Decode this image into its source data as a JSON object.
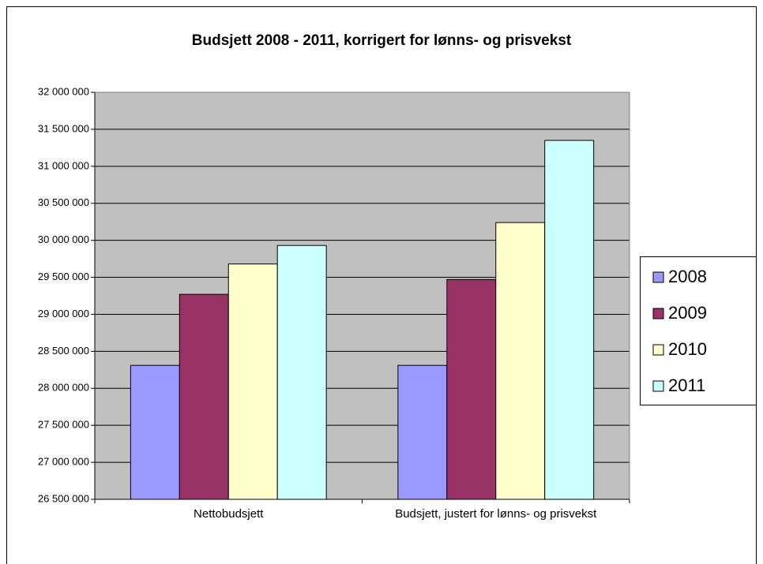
{
  "chart_data": {
    "type": "bar",
    "title": "Budsjett 2008 - 2011, korrigert for lønns- og prisvekst",
    "categories": [
      "Nettobudsjett",
      "Budsjett, justert for lønns- og prisvekst"
    ],
    "series": [
      {
        "name": "2008",
        "color": "#9999ff",
        "values": [
          28310000,
          28310000
        ]
      },
      {
        "name": "2009",
        "color": "#993366",
        "values": [
          29270000,
          29470000
        ]
      },
      {
        "name": "2010",
        "color": "#ffffcc",
        "values": [
          29680000,
          30240000
        ]
      },
      {
        "name": "2011",
        "color": "#ccffff",
        "values": [
          29930000,
          31350000
        ]
      }
    ],
    "ylim": [
      26500000,
      32000000
    ],
    "yticks": [
      {
        "value": 26500000,
        "label": "26 500 000"
      },
      {
        "value": 27000000,
        "label": "27 000 000"
      },
      {
        "value": 27500000,
        "label": "27 500 000"
      },
      {
        "value": 28000000,
        "label": "28 000 000"
      },
      {
        "value": 28500000,
        "label": "28 500 000"
      },
      {
        "value": 29000000,
        "label": "29 000 000"
      },
      {
        "value": 29500000,
        "label": "29 500 000"
      },
      {
        "value": 30000000,
        "label": "30 000 000"
      },
      {
        "value": 30500000,
        "label": "30 500 000"
      },
      {
        "value": 31000000,
        "label": "31 000 000"
      },
      {
        "value": 31500000,
        "label": "31 500 000"
      },
      {
        "value": 32000000,
        "label": "32 000 000"
      }
    ],
    "grid": true,
    "legend": "right"
  }
}
